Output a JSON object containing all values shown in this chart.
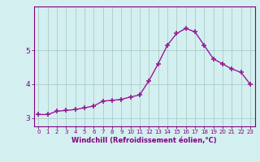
{
  "x": [
    0,
    1,
    2,
    3,
    4,
    5,
    6,
    7,
    8,
    9,
    10,
    11,
    12,
    13,
    14,
    15,
    16,
    17,
    18,
    19,
    20,
    21,
    22,
    23
  ],
  "y": [
    3.1,
    3.1,
    3.2,
    3.22,
    3.25,
    3.3,
    3.35,
    3.5,
    3.52,
    3.55,
    3.62,
    3.68,
    4.1,
    4.6,
    5.15,
    5.5,
    5.65,
    5.55,
    5.15,
    4.75,
    4.6,
    4.45,
    4.35,
    4.0
  ],
  "line_color": "#991999",
  "marker": "+",
  "marker_size": 4,
  "marker_lw": 1.2,
  "line_width": 1.0,
  "bg_color": "#d4efef",
  "grid_color": "#aacccc",
  "xlabel": "Windchill (Refroidissement éolien,°C)",
  "xlabel_color": "#800080",
  "tick_color": "#800080",
  "axis_color": "#800080",
  "xlim": [
    -0.5,
    23.5
  ],
  "ylim": [
    2.75,
    6.3
  ],
  "yticks": [
    3,
    4,
    5
  ],
  "xticks": [
    0,
    1,
    2,
    3,
    4,
    5,
    6,
    7,
    8,
    9,
    10,
    11,
    12,
    13,
    14,
    15,
    16,
    17,
    18,
    19,
    20,
    21,
    22,
    23
  ]
}
